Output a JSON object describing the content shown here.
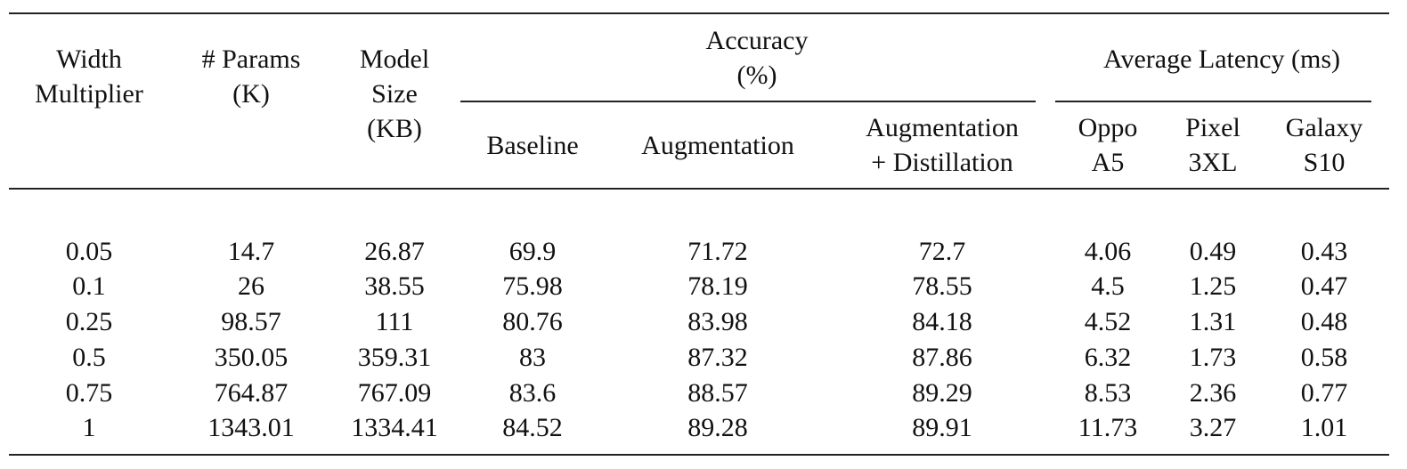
{
  "table": {
    "headers": {
      "width_multiplier": [
        "Width",
        "Multiplier"
      ],
      "params": [
        "# Params",
        "(K)"
      ],
      "model_size": [
        "Model",
        "Size",
        "(KB)"
      ],
      "accuracy_group": [
        "Accuracy",
        "(%)"
      ],
      "latency_group": "Average Latency (ms)",
      "baseline": "Baseline",
      "augmentation": "Augmentation",
      "aug_distill": [
        "Augmentation",
        "+ Distillation"
      ],
      "oppo": [
        "Oppo",
        "A5"
      ],
      "pixel": [
        "Pixel",
        "3XL"
      ],
      "galaxy": [
        "Galaxy",
        "S10"
      ]
    },
    "rows": [
      [
        "0.05",
        "14.7",
        "26.87",
        "69.9",
        "71.72",
        "72.7",
        "4.06",
        "0.49",
        "0.43"
      ],
      [
        "0.1",
        "26",
        "38.55",
        "75.98",
        "78.19",
        "78.55",
        "4.5",
        "1.25",
        "0.47"
      ],
      [
        "0.25",
        "98.57",
        "111",
        "80.76",
        "83.98",
        "84.18",
        "4.52",
        "1.31",
        "0.48"
      ],
      [
        "0.5",
        "350.05",
        "359.31",
        "83",
        "87.32",
        "87.86",
        "6.32",
        "1.73",
        "0.58"
      ],
      [
        "0.75",
        "764.87",
        "767.09",
        "83.6",
        "88.57",
        "89.29",
        "8.53",
        "2.36",
        "0.77"
      ],
      [
        "1",
        "1343.01",
        "1334.41",
        "84.52",
        "89.28",
        "89.91",
        "11.73",
        "3.27",
        "1.01"
      ]
    ]
  }
}
